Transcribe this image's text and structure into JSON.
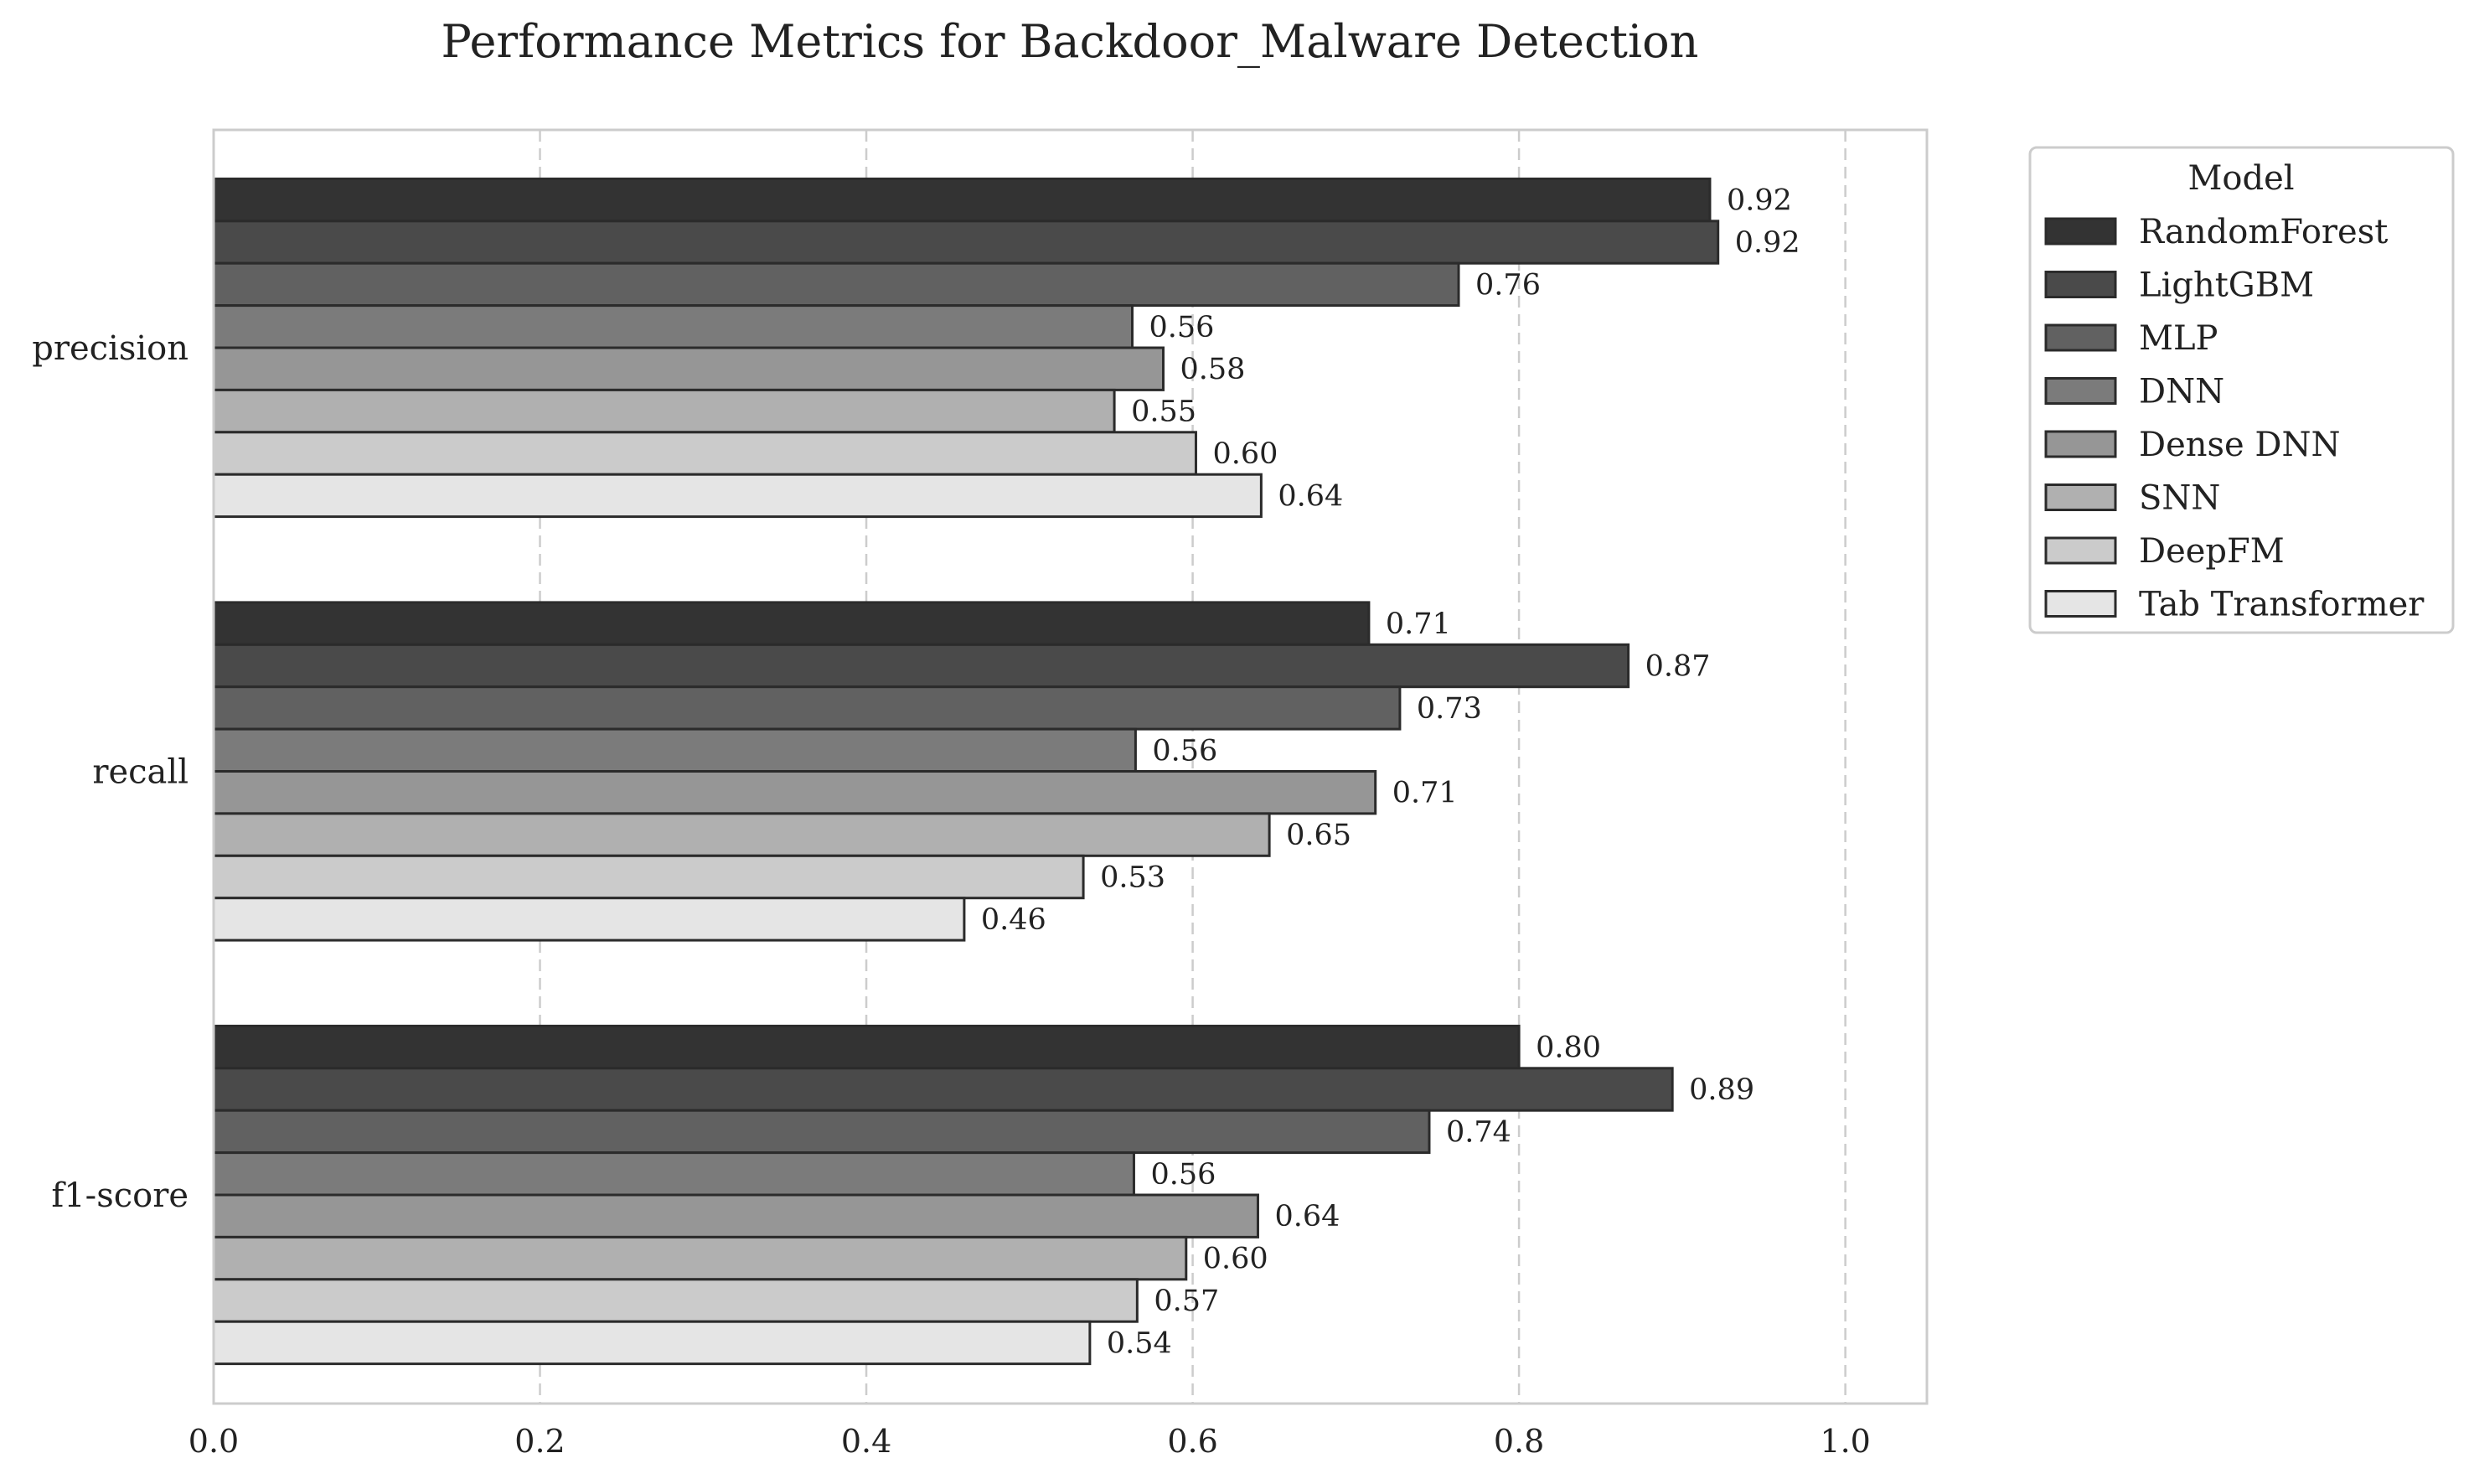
{
  "chart_data": {
    "type": "bar",
    "orientation": "horizontal",
    "title": "Performance Metrics for Backdoor_Malware Detection",
    "xlabel": "",
    "ylabel": "",
    "xlim": [
      0,
      1.05
    ],
    "xticks": [
      0.0,
      0.2,
      0.4,
      0.6,
      0.8,
      1.0
    ],
    "xtick_labels": [
      "0.0",
      "0.2",
      "0.4",
      "0.6",
      "0.8",
      "1.0"
    ],
    "grid": "x-dashed",
    "legend_title": "Model",
    "legend_position": "outside-top-right",
    "categories": [
      "precision",
      "recall",
      "f1-score"
    ],
    "series": [
      {
        "name": "RandomForest",
        "color": "#333333",
        "values": [
          0.917,
          0.708,
          0.8
        ]
      },
      {
        "name": "LightGBM",
        "color": "#4a4a4a",
        "values": [
          0.922,
          0.867,
          0.894
        ]
      },
      {
        "name": "MLP",
        "color": "#616161",
        "values": [
          0.763,
          0.727,
          0.745
        ]
      },
      {
        "name": "DNN",
        "color": "#7b7b7b",
        "values": [
          0.563,
          0.565,
          0.564
        ]
      },
      {
        "name": "Dense DNN",
        "color": "#969696",
        "values": [
          0.582,
          0.712,
          0.64
        ]
      },
      {
        "name": "SNN",
        "color": "#b0b0b0",
        "values": [
          0.552,
          0.647,
          0.596
        ]
      },
      {
        "name": "DeepFM",
        "color": "#cbcbcb",
        "values": [
          0.602,
          0.533,
          0.566
        ]
      },
      {
        "name": "Tab Transformer",
        "color": "#e5e5e5",
        "values": [
          0.642,
          0.46,
          0.537
        ]
      }
    ],
    "data_labels": [
      [
        "0.92",
        "0.71",
        "0.80"
      ],
      [
        "0.92",
        "0.87",
        "0.89"
      ],
      [
        "0.76",
        "0.73",
        "0.74"
      ],
      [
        "0.56",
        "0.56",
        "0.56"
      ],
      [
        "0.58",
        "0.71",
        "0.64"
      ],
      [
        "0.55",
        "0.65",
        "0.60"
      ],
      [
        "0.60",
        "0.53",
        "0.57"
      ],
      [
        "0.64",
        "0.46",
        "0.54"
      ]
    ]
  }
}
